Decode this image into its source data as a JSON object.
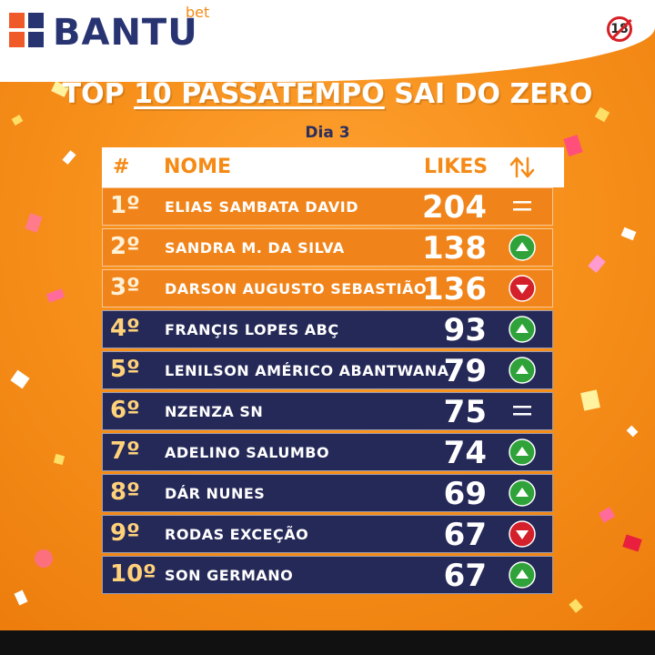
{
  "brand": {
    "name": "BANTU",
    "suffix": "bet",
    "age_badge": "18"
  },
  "title": {
    "prefix": "TOP ",
    "underlined": "10 PASSATEMPO",
    "suffix": " SAI DO ZERO"
  },
  "subtitle": "Dia 3",
  "columns": {
    "rank": "#",
    "name": "NOME",
    "likes": "LIKES"
  },
  "colors": {
    "orange": "#f0841a",
    "navy": "#252958",
    "up": "#2fa33a",
    "down": "#d3202b"
  },
  "rows": [
    {
      "rank": "1º",
      "name": "ELIAS SAMBATA DAVID",
      "likes": "204",
      "trend": "same",
      "style": "orange"
    },
    {
      "rank": "2º",
      "name": "SANDRA M. DA SILVA",
      "likes": "138",
      "trend": "up",
      "style": "orange"
    },
    {
      "rank": "3º",
      "name": "DARSON AUGUSTO SEBASTIÃO",
      "likes": "136",
      "trend": "down",
      "style": "orange"
    },
    {
      "rank": "4º",
      "name": "FRANÇIS LOPES ABÇ",
      "likes": "93",
      "trend": "up",
      "style": "navy"
    },
    {
      "rank": "5º",
      "name": "LENILSON AMÉRICO ABANTWANA",
      "likes": "79",
      "trend": "up",
      "style": "navy"
    },
    {
      "rank": "6º",
      "name": "NZENZA SN",
      "likes": "75",
      "trend": "same",
      "style": "navy"
    },
    {
      "rank": "7º",
      "name": "ADELINO SALUMBO",
      "likes": "74",
      "trend": "up",
      "style": "navy"
    },
    {
      "rank": "8º",
      "name": "DÁR NUNES",
      "likes": "69",
      "trend": "up",
      "style": "navy"
    },
    {
      "rank": "9º",
      "name": "RODAS EXCEÇÃO",
      "likes": "67",
      "trend": "down",
      "style": "navy"
    },
    {
      "rank": "10º",
      "name": "SON GERMANO",
      "likes": "67",
      "trend": "up",
      "style": "navy"
    }
  ]
}
